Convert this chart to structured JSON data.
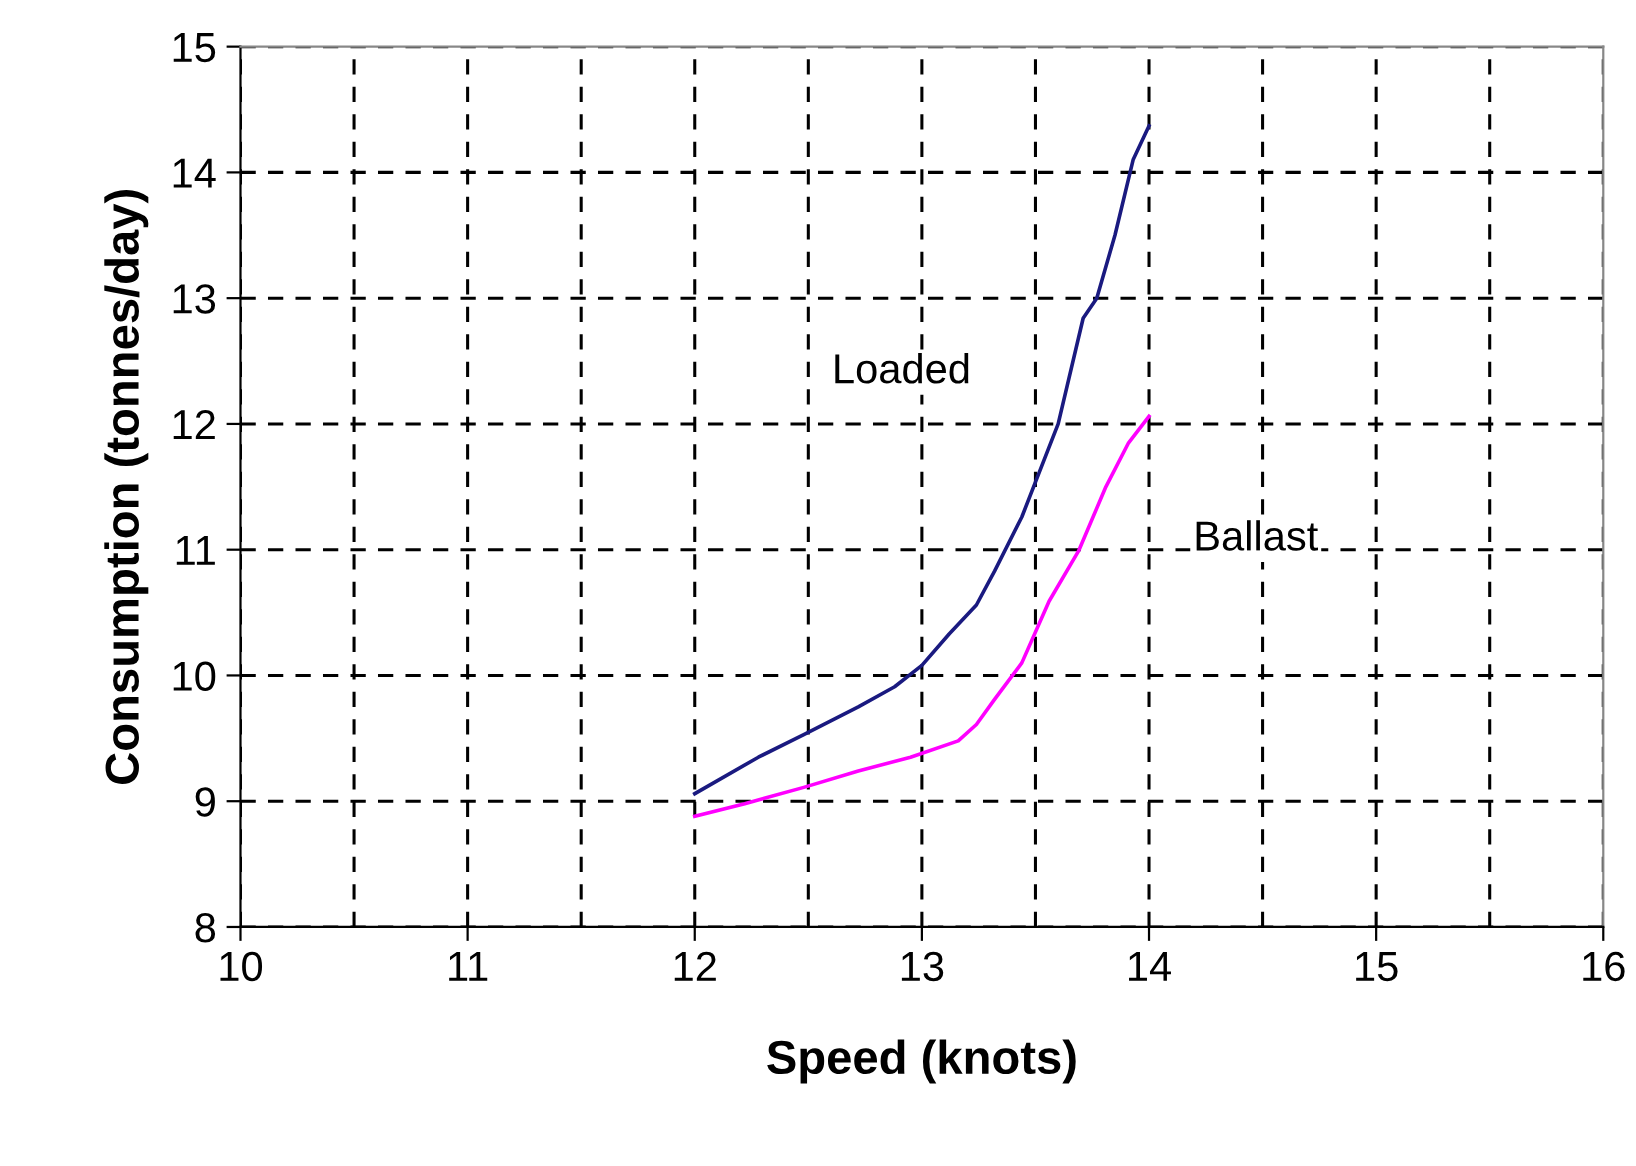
{
  "chart_data": {
    "type": "line",
    "xlabel": "Speed (knots)",
    "ylabel": "Consumption (tonnes/day)",
    "xlim": [
      10,
      16
    ],
    "ylim": [
      8,
      15
    ],
    "xticks": [
      10,
      {
        "value": 10.5,
        "label": null
      },
      11,
      {
        "value": 11.5,
        "label": null
      },
      12,
      {
        "value": 12.5,
        "label": null
      },
      13,
      {
        "value": 13.5,
        "label": null
      },
      14,
      {
        "value": 14.5,
        "label": null
      },
      15,
      {
        "value": 15.5,
        "label": null
      },
      16
    ],
    "yticks": [
      8,
      9,
      10,
      11,
      12,
      13,
      14,
      15
    ],
    "grid": true,
    "legend": false,
    "marker": "none",
    "line_style": "solid",
    "series": [
      {
        "name": "Loaded",
        "color": "#1a1a80",
        "x": [
          12,
          12.28,
          12.48,
          12.72,
          12.88,
          13.0,
          13.12,
          13.24,
          13.32,
          13.44,
          13.6,
          13.71,
          13.77,
          13.85,
          13.93,
          14.0
        ],
        "values": [
          9.06,
          9.35,
          9.53,
          9.75,
          9.91,
          10.08,
          10.33,
          10.56,
          10.83,
          11.26,
          12.0,
          12.84,
          13.0,
          13.5,
          14.1,
          14.37
        ]
      },
      {
        "name": "Ballast",
        "color": "#ff00ff",
        "x": [
          12,
          12.22,
          12.48,
          12.72,
          12.95,
          13.16,
          13.24,
          13.32,
          13.44,
          13.56,
          13.69,
          13.81,
          13.91,
          14.0
        ],
        "values": [
          8.88,
          8.98,
          9.11,
          9.24,
          9.35,
          9.48,
          9.61,
          9.81,
          10.1,
          10.59,
          10.99,
          11.5,
          11.85,
          12.06
        ]
      }
    ]
  }
}
